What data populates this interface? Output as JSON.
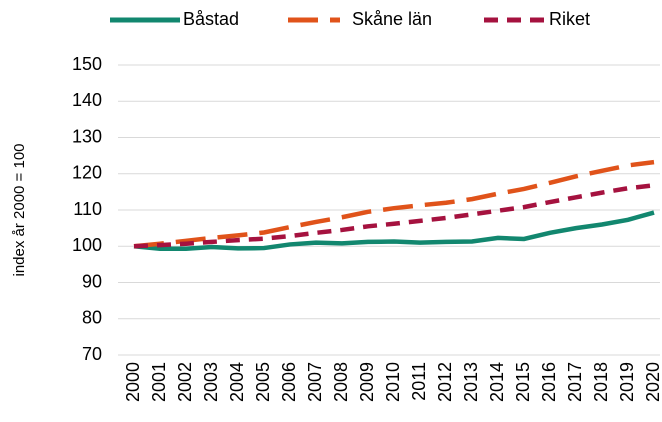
{
  "chart_data": {
    "type": "line",
    "y_label": "index år 2000 = 100",
    "categories": [
      "2000",
      "2001",
      "2002",
      "2003",
      "2004",
      "2005",
      "2006",
      "2007",
      "2008",
      "2009",
      "2010",
      "2011",
      "2012",
      "2013",
      "2014",
      "2015",
      "2016",
      "2017",
      "2018",
      "2019",
      "2020"
    ],
    "series": [
      {
        "name": "Båstad",
        "color": "#12876f",
        "values": [
          100,
          99.3,
          99.3,
          99.8,
          99.4,
          99.5,
          100.5,
          101,
          100.8,
          101.2,
          101.3,
          101,
          101.2,
          101.3,
          102.3,
          102,
          103.7,
          105,
          106,
          107.3,
          109.3
        ]
      },
      {
        "name": "Skåne län",
        "color": "#e0531a",
        "values": [
          100,
          100.7,
          101.5,
          102.3,
          103,
          103.8,
          105.3,
          106.7,
          108,
          109.5,
          110.5,
          111.3,
          112,
          113,
          114.5,
          115.8,
          117.5,
          119.3,
          120.8,
          122.3,
          123.2
        ]
      },
      {
        "name": "Riket",
        "color": "#a5123f",
        "values": [
          100,
          100.3,
          100.7,
          101.2,
          101.7,
          102.1,
          102.8,
          103.7,
          104.5,
          105.5,
          106.2,
          107,
          107.8,
          108.8,
          109.8,
          110.8,
          112.2,
          113.5,
          114.8,
          116,
          116.8
        ]
      }
    ],
    "ylim": [
      70,
      150
    ],
    "yticks": [
      70,
      80,
      90,
      100,
      110,
      120,
      130,
      140,
      150
    ],
    "grid": true,
    "legend": "top"
  }
}
